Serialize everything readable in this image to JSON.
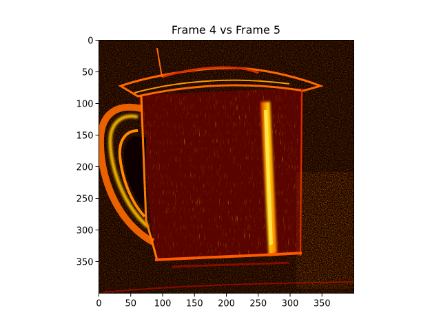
{
  "figure": {
    "title": "Frame 4 vs Frame 5"
  },
  "axes": {
    "x_range": [
      0,
      400
    ],
    "y_range": [
      400,
      0
    ],
    "x_ticks": [
      0,
      50,
      100,
      150,
      200,
      250,
      300,
      350
    ],
    "y_ticks": [
      0,
      50,
      100,
      150,
      200,
      250,
      300,
      350
    ],
    "x_tick_labels": [
      "0",
      "50",
      "100",
      "150",
      "200",
      "250",
      "300",
      "350"
    ],
    "y_tick_labels": [
      "0",
      "50",
      "100",
      "150",
      "200",
      "250",
      "300",
      "350"
    ]
  },
  "image": {
    "subject": "mug",
    "colormap": "hot",
    "background_color": "#0e0000",
    "accent_colors": [
      "#3a0000",
      "#8a0a00",
      "#d83000",
      "#ff7a00",
      "#ffd400"
    ]
  }
}
